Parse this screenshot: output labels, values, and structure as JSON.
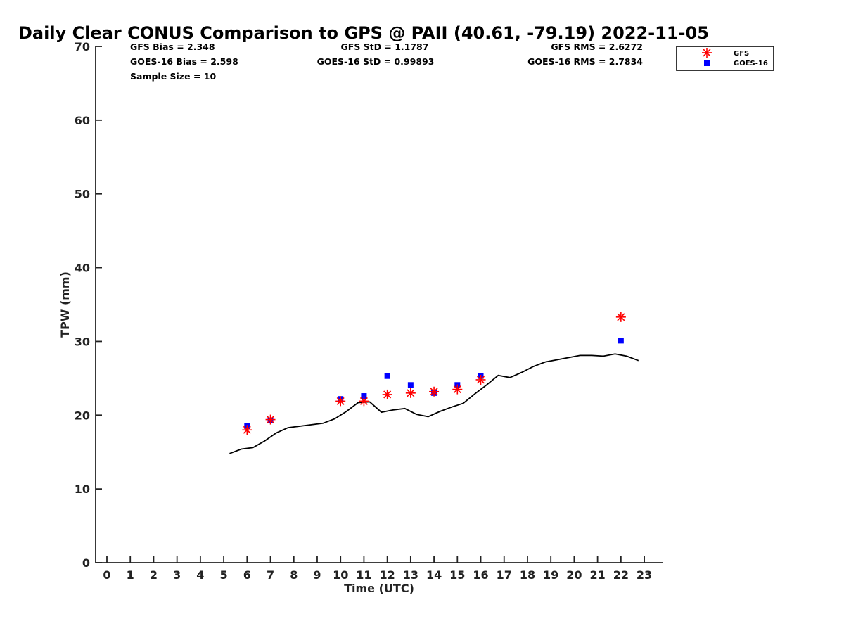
{
  "chart_data": {
    "type": "scatter",
    "title": "Daily Clear CONUS Comparison to GPS @ PAII (40.61, -79.19) 2022-11-05",
    "xlabel": "Time (UTC)",
    "ylabel": "TPW (mm)",
    "xlim": [
      -0.5,
      23.7
    ],
    "ylim": [
      0,
      70
    ],
    "xticks": [
      0,
      1,
      2,
      3,
      4,
      5,
      6,
      7,
      8,
      9,
      10,
      11,
      12,
      13,
      14,
      15,
      16,
      17,
      18,
      19,
      20,
      21,
      22,
      23
    ],
    "yticks": [
      0,
      10,
      20,
      30,
      40,
      50,
      60,
      70
    ],
    "grid": false,
    "legend_position": "outside-top-right",
    "stats": {
      "gfs_bias": "GFS Bias = 2.348",
      "goes_bias": "GOES-16 Bias = 2.598",
      "sample_size": "Sample Size = 10",
      "gfs_std": "GFS StD = 1.1787",
      "goes_std": "GOES-16 StD = 0.99893",
      "gfs_rms": "GFS RMS = 2.6272",
      "goes_rms": "GOES-16 RMS = 2.7834"
    },
    "series": [
      {
        "name": "GFS",
        "marker": "asterisk",
        "color": "#ff0000",
        "x": [
          6,
          7,
          10,
          11,
          12,
          13,
          14,
          15,
          16,
          22
        ],
        "y": [
          18.0,
          19.4,
          21.9,
          21.9,
          22.8,
          23.0,
          23.2,
          23.5,
          24.8,
          33.3
        ]
      },
      {
        "name": "GOES-16",
        "marker": "square",
        "color": "#0000ff",
        "x": [
          6,
          7,
          10,
          11,
          12,
          13,
          14,
          15,
          16,
          22
        ],
        "y": [
          18.5,
          19.3,
          22.2,
          22.6,
          25.3,
          24.1,
          23.0,
          24.1,
          25.3,
          30.1
        ]
      },
      {
        "name": "",
        "marker": "line",
        "color": "#000000",
        "x": [
          5.25,
          5.75,
          6.25,
          6.75,
          7.25,
          7.75,
          8.25,
          8.75,
          9.25,
          9.75,
          10.25,
          10.75,
          11.25,
          11.75,
          12.25,
          12.75,
          13.25,
          13.75,
          14.25,
          14.75,
          15.25,
          15.75,
          16.25,
          16.75,
          17.25,
          17.75,
          18.25,
          18.75,
          19.25,
          19.75,
          20.25,
          20.75,
          21.25,
          21.75,
          22.25,
          22.75
        ],
        "y": [
          14.8,
          15.4,
          15.6,
          16.5,
          17.6,
          18.3,
          18.5,
          18.7,
          18.9,
          19.5,
          20.5,
          21.7,
          21.8,
          20.4,
          20.7,
          20.9,
          20.1,
          19.8,
          20.5,
          21.1,
          21.6,
          22.9,
          24.1,
          25.4,
          25.1,
          25.8,
          26.6,
          27.2,
          27.5,
          27.8,
          28.1,
          28.1,
          28.0,
          28.3,
          28.0,
          27.4
        ]
      }
    ]
  }
}
